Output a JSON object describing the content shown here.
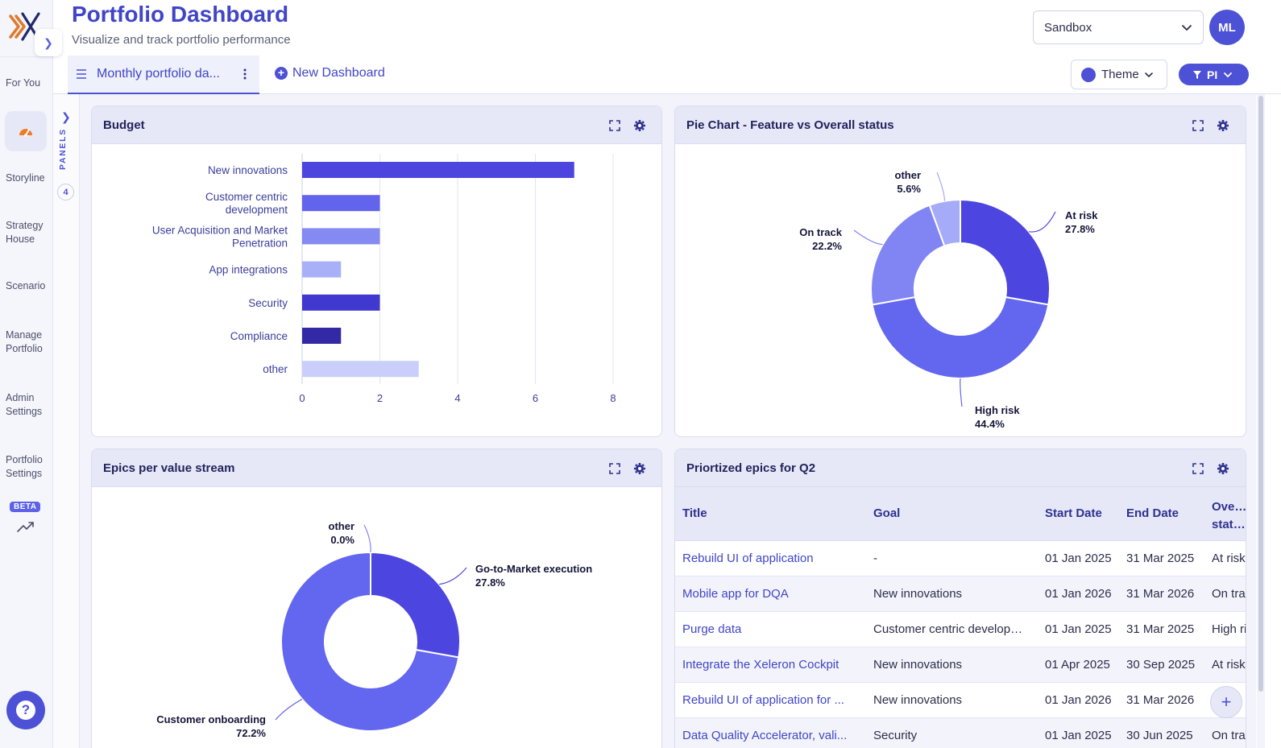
{
  "header": {
    "title": "Portfolio Dashboard",
    "subtitle": "Visualize and track portfolio performance",
    "environment_select": "Sandbox",
    "avatar_initials": "ML"
  },
  "tabs": {
    "active_tab": "Monthly portfolio da...",
    "new_dashboard": "New Dashboard",
    "theme_button": "Theme",
    "filter_button": "PI"
  },
  "sidebar": {
    "items": [
      {
        "label": "For You"
      },
      {
        "label": "Storyline"
      },
      {
        "label": "Strategy House"
      },
      {
        "label": "Scenario"
      },
      {
        "label": "Manage Portfolio"
      },
      {
        "label": "Admin Settings"
      },
      {
        "label": "Portfolio Settings"
      }
    ],
    "beta_badge": "BETA",
    "help": "?"
  },
  "panels_strip": {
    "label": "PANELS",
    "count": "4"
  },
  "colors": {
    "accent": "#4c51d6",
    "title": "#4045c8",
    "header_bg": "#e6e8f8"
  },
  "panels": {
    "budget": {
      "title": "Budget"
    },
    "pie_status": {
      "title": "Pie Chart - Feature vs Overall status"
    },
    "epics_stream": {
      "title": "Epics per value stream"
    },
    "prioritized": {
      "title": "Priortized epics for Q2",
      "columns": [
        "Title",
        "Goal",
        "Start Date",
        "End Date",
        "Overall status"
      ],
      "rows": [
        {
          "title": "Rebuild UI of application",
          "goal": "-",
          "start": "01 Jan 2025",
          "end": "31 Mar 2025",
          "status": "At risk"
        },
        {
          "title": "Mobile app for DQA",
          "goal": "New innovations",
          "start": "01 Jan 2026",
          "end": "31 Mar 2026",
          "status": "On track"
        },
        {
          "title": "Purge data",
          "goal": "Customer centric development",
          "start": "01 Jan 2025",
          "end": "31 Mar 2025",
          "status": "High risk"
        },
        {
          "title": "Integrate the Xeleron Cockpit",
          "goal": "New innovations",
          "start": "01 Apr 2025",
          "end": "30 Sep 2025",
          "status": "At risk"
        },
        {
          "title": "Rebuild UI of application for ...",
          "goal": "New innovations",
          "start": "01 Jan 2026",
          "end": "31 Mar 2026",
          "status": ""
        },
        {
          "title": "Data Quality Accelerator, vali...",
          "goal": "Security",
          "start": "01 Jan 2025",
          "end": "30 Jun 2025",
          "status": "On track"
        }
      ]
    }
  },
  "chart_data": [
    {
      "type": "bar",
      "orientation": "horizontal",
      "title": "Budget",
      "categories": [
        "New innovations",
        "Customer centric development",
        "User Acquisition and Market Penetration",
        "App integrations",
        "Security",
        "Compliance",
        "other"
      ],
      "category_lines": [
        [
          "New innovations"
        ],
        [
          "Customer centric",
          "development"
        ],
        [
          "User Acquisition and Market",
          "Penetration"
        ],
        [
          "App integrations"
        ],
        [
          "Security"
        ],
        [
          "Compliance"
        ],
        [
          "other"
        ]
      ],
      "values": [
        7,
        2,
        2,
        1,
        2,
        1,
        3
      ],
      "colors": [
        "#4c45de",
        "#6264ee",
        "#8589f2",
        "#a9b0f7",
        "#4038cf",
        "#3329a6",
        "#c9cffa"
      ],
      "xlim": [
        0,
        8
      ],
      "xticks": [
        0,
        2,
        4,
        6,
        8
      ],
      "grid": true
    },
    {
      "type": "pie",
      "donut": true,
      "title": "Pie Chart - Feature vs Overall status",
      "slices": [
        {
          "label": "At risk",
          "value": 27.8,
          "display": "27.8%",
          "color": "#4c45e0"
        },
        {
          "label": "High risk",
          "value": 44.4,
          "display": "44.4%",
          "color": "#6366ee"
        },
        {
          "label": "On track",
          "value": 22.2,
          "display": "22.2%",
          "color": "#8185f3"
        },
        {
          "label": "other",
          "value": 5.6,
          "display": "5.6%",
          "color": "#a5abf6"
        }
      ]
    },
    {
      "type": "pie",
      "donut": true,
      "title": "Epics per value stream",
      "slices": [
        {
          "label": "Go-to-Market execution",
          "value": 27.8,
          "display": "27.8%",
          "color": "#4c45e0"
        },
        {
          "label": "Customer onboarding",
          "value": 72.2,
          "display": "72.2%",
          "color": "#6366ee"
        },
        {
          "label": "other",
          "value": 0.0,
          "display": "0.0%",
          "color": "#8185f3"
        }
      ]
    }
  ]
}
